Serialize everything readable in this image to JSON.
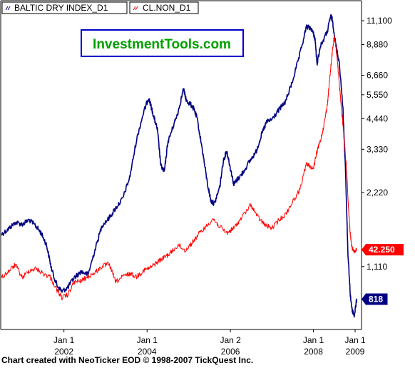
{
  "legend": [
    {
      "label": "BALTIC DRY INDEX_D1",
      "color": "#000080"
    },
    {
      "label": "CL.NON_D1",
      "color": "#ff0000"
    }
  ],
  "watermark": "InvestmentTools.com",
  "footer": "Chart created with NeoTicker EOD © 1998-2007 TickQuest Inc.",
  "colors": {
    "baltic": "#000080",
    "crude": "#ff0000",
    "watermark_text": "#00a000",
    "watermark_border": "#0000cc"
  },
  "chart_data": {
    "type": "line",
    "title": "",
    "x_range": [
      "2000-07-01",
      "2009-02-20"
    ],
    "x_ticks": [
      {
        "date": "2002-01-01",
        "line1": "Jan 1",
        "line2": "2002"
      },
      {
        "date": "2004-01-01",
        "line1": "Jan 1",
        "line2": "2004"
      },
      {
        "date": "2006-01-02",
        "line1": "Jan 2",
        "line2": "2006"
      },
      {
        "date": "2008-01-01",
        "line1": "Jan 1",
        "line2": "2008"
      },
      {
        "date": "2009-01-01",
        "line1": "Jan 1",
        "line2": "2009"
      }
    ],
    "y_ticks": [
      "11,100",
      "8,880",
      "6,660",
      "5,550",
      "4,440",
      "3,330",
      "2,220",
      "1,110"
    ],
    "y_scale": "log",
    "y_range": [
      620,
      13300
    ],
    "last_values": [
      {
        "series": "CL.NON_D1",
        "label": "42.250",
        "color": "#ff0000"
      },
      {
        "series": "BALTIC DRY INDEX_D1",
        "label": "818",
        "color": "#000080"
      }
    ],
    "series": [
      {
        "name": "BALTIC DRY INDEX_D1",
        "color": "#000080",
        "points": [
          [
            "2000-07-01",
            1500
          ],
          [
            "2000-09-01",
            1580
          ],
          [
            "2000-11-01",
            1680
          ],
          [
            "2001-01-01",
            1650
          ],
          [
            "2001-03-01",
            1720
          ],
          [
            "2001-05-01",
            1620
          ],
          [
            "2001-06-15",
            1520
          ],
          [
            "2001-08-01",
            1360
          ],
          [
            "2001-09-15",
            1080
          ],
          [
            "2001-11-01",
            930
          ],
          [
            "2001-12-15",
            880
          ],
          [
            "2002-02-01",
            910
          ],
          [
            "2002-04-01",
            1000
          ],
          [
            "2002-06-01",
            1060
          ],
          [
            "2002-08-01",
            1030
          ],
          [
            "2002-10-01",
            1300
          ],
          [
            "2002-12-01",
            1630
          ],
          [
            "2003-02-01",
            1750
          ],
          [
            "2003-04-01",
            1920
          ],
          [
            "2003-06-01",
            2100
          ],
          [
            "2003-08-01",
            2550
          ],
          [
            "2003-10-01",
            3650
          ],
          [
            "2003-12-01",
            4700
          ],
          [
            "2004-01-15",
            5400
          ],
          [
            "2004-02-01",
            5050
          ],
          [
            "2004-03-01",
            4500
          ],
          [
            "2004-04-01",
            4000
          ],
          [
            "2004-05-01",
            2850
          ],
          [
            "2004-06-01",
            2700
          ],
          [
            "2004-07-01",
            3550
          ],
          [
            "2004-08-15",
            4100
          ],
          [
            "2004-10-01",
            4750
          ],
          [
            "2004-11-15",
            5850
          ],
          [
            "2004-12-15",
            5200
          ],
          [
            "2005-01-15",
            5100
          ],
          [
            "2005-02-15",
            4850
          ],
          [
            "2005-03-15",
            4450
          ],
          [
            "2005-05-01",
            3300
          ],
          [
            "2005-06-15",
            2400
          ],
          [
            "2005-07-15",
            2050
          ],
          [
            "2005-08-15",
            2000
          ],
          [
            "2005-10-01",
            2350
          ],
          [
            "2005-11-01",
            3000
          ],
          [
            "2005-12-01",
            3280
          ],
          [
            "2006-01-01",
            2800
          ],
          [
            "2006-02-01",
            2400
          ],
          [
            "2006-03-01",
            2500
          ],
          [
            "2006-04-15",
            2650
          ],
          [
            "2006-06-15",
            2950
          ],
          [
            "2006-08-15",
            3250
          ],
          [
            "2006-10-01",
            3800
          ],
          [
            "2006-11-15",
            4300
          ],
          [
            "2007-01-01",
            4400
          ],
          [
            "2007-03-01",
            4800
          ],
          [
            "2007-05-01",
            5200
          ],
          [
            "2007-07-01",
            6300
          ],
          [
            "2007-09-01",
            8000
          ],
          [
            "2007-11-01",
            10500
          ],
          [
            "2007-12-15",
            10300
          ],
          [
            "2008-01-15",
            9400
          ],
          [
            "2008-02-01",
            7400
          ],
          [
            "2008-03-01",
            8700
          ],
          [
            "2008-05-01",
            10000
          ],
          [
            "2008-06-01",
            11600
          ],
          [
            "2008-06-15",
            11200
          ],
          [
            "2008-07-15",
            8900
          ],
          [
            "2008-08-15",
            7500
          ],
          [
            "2008-09-15",
            5000
          ],
          [
            "2008-10-10",
            2600
          ],
          [
            "2008-10-30",
            1250
          ],
          [
            "2008-11-20",
            850
          ],
          [
            "2008-12-05",
            743
          ],
          [
            "2008-12-25",
            700
          ],
          [
            "2009-01-15",
            818
          ]
        ]
      },
      {
        "name": "CL.NON_D1",
        "color": "#ff0000",
        "points": [
          [
            "2000-07-01",
            1000
          ],
          [
            "2000-09-01",
            1060
          ],
          [
            "2000-11-01",
            1130
          ],
          [
            "2001-01-01",
            1000
          ],
          [
            "2001-03-01",
            1070
          ],
          [
            "2001-05-01",
            1090
          ],
          [
            "2001-07-01",
            1040
          ],
          [
            "2001-09-01",
            1010
          ],
          [
            "2001-11-01",
            890
          ],
          [
            "2001-12-15",
            830
          ],
          [
            "2002-02-01",
            850
          ],
          [
            "2002-04-01",
            960
          ],
          [
            "2002-06-01",
            970
          ],
          [
            "2002-08-01",
            1010
          ],
          [
            "2002-10-01",
            1050
          ],
          [
            "2002-12-01",
            1110
          ],
          [
            "2003-02-01",
            1140
          ],
          [
            "2003-04-01",
            960
          ],
          [
            "2003-06-01",
            1010
          ],
          [
            "2003-08-01",
            1040
          ],
          [
            "2003-10-01",
            1010
          ],
          [
            "2003-12-01",
            1070
          ],
          [
            "2004-02-01",
            1100
          ],
          [
            "2004-04-01",
            1160
          ],
          [
            "2004-06-01",
            1210
          ],
          [
            "2004-08-01",
            1270
          ],
          [
            "2004-10-01",
            1360
          ],
          [
            "2004-12-01",
            1290
          ],
          [
            "2005-02-01",
            1390
          ],
          [
            "2005-04-01",
            1510
          ],
          [
            "2005-06-01",
            1610
          ],
          [
            "2005-08-01",
            1740
          ],
          [
            "2005-10-01",
            1610
          ],
          [
            "2005-12-01",
            1520
          ],
          [
            "2006-02-01",
            1590
          ],
          [
            "2006-04-01",
            1730
          ],
          [
            "2006-07-01",
            1980
          ],
          [
            "2006-09-01",
            1760
          ],
          [
            "2006-11-01",
            1640
          ],
          [
            "2007-01-01",
            1590
          ],
          [
            "2007-03-01",
            1710
          ],
          [
            "2007-05-01",
            1810
          ],
          [
            "2007-07-01",
            2030
          ],
          [
            "2007-09-01",
            2270
          ],
          [
            "2007-11-01",
            2900
          ],
          [
            "2008-01-01",
            2780
          ],
          [
            "2008-02-01",
            3250
          ],
          [
            "2008-03-01",
            3600
          ],
          [
            "2008-04-01",
            4150
          ],
          [
            "2008-05-01",
            5000
          ],
          [
            "2008-05-20",
            6200
          ],
          [
            "2008-06-10",
            7900
          ],
          [
            "2008-06-30",
            9500
          ],
          [
            "2008-07-15",
            8800
          ],
          [
            "2008-08-01",
            7300
          ],
          [
            "2008-08-20",
            5800
          ],
          [
            "2008-09-10",
            4500
          ],
          [
            "2008-10-01",
            3500
          ],
          [
            "2008-10-20",
            2650
          ],
          [
            "2008-11-05",
            1880
          ],
          [
            "2008-11-20",
            1500
          ],
          [
            "2008-12-05",
            1320
          ],
          [
            "2008-12-25",
            1270
          ],
          [
            "2009-01-15",
            1300
          ]
        ]
      }
    ]
  }
}
